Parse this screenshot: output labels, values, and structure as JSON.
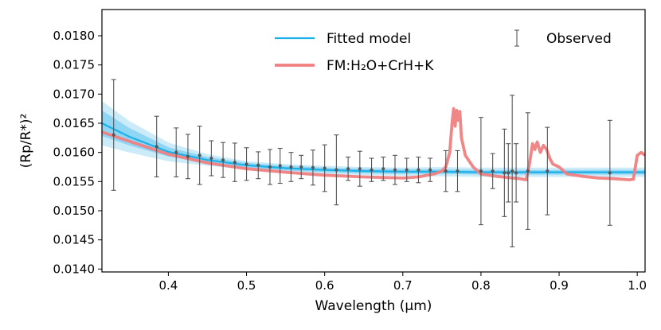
{
  "chart_data": {
    "type": "line",
    "xlabel": "Wavelength (μm)",
    "ylabel": "(Rp/R*)²",
    "xlim": [
      0.315,
      1.01
    ],
    "ylim": [
      0.01395,
      0.01845
    ],
    "x_ticks": [
      0.4,
      0.5,
      0.6,
      0.7,
      0.8,
      0.9,
      1.0
    ],
    "x_tick_labels": [
      "0.4",
      "0.5",
      "0.6",
      "0.7",
      "0.8",
      "0.9",
      "1.0"
    ],
    "y_ticks": [
      0.014,
      0.0145,
      0.015,
      0.0155,
      0.016,
      0.0165,
      0.017,
      0.0175,
      0.018
    ],
    "y_tick_labels": [
      "0.0140",
      "0.0145",
      "0.0150",
      "0.0155",
      "0.0160",
      "0.0165",
      "0.0170",
      "0.0175",
      "0.0180"
    ],
    "legend": {
      "placement": "top-right",
      "entries": [
        "Fitted model",
        "FM:H₂O+CrH+K",
        "Observed"
      ]
    },
    "series": [
      {
        "name": "Fitted model",
        "color": "#1ab0e8",
        "x": [
          0.315,
          0.35,
          0.4,
          0.45,
          0.5,
          0.55,
          0.6,
          0.65,
          0.7,
          0.75,
          0.8,
          0.85,
          0.9,
          0.95,
          1.01
        ],
        "y": [
          0.0165,
          0.01627,
          0.01601,
          0.01587,
          0.01578,
          0.01573,
          0.0157,
          0.01568,
          0.01567,
          0.01567,
          0.01566,
          0.01566,
          0.01566,
          0.01566,
          0.01566
        ],
        "bands": [
          {
            "lower": [
              0.01612,
              0.016,
              0.01585,
              0.01577,
              0.01571,
              0.01566,
              0.01563,
              0.01561,
              0.0156,
              0.01559,
              0.01558,
              0.01558,
              0.01558,
              0.01558,
              0.01558
            ],
            "upper": [
              0.01688,
              0.01654,
              0.01617,
              0.01597,
              0.01585,
              0.0158,
              0.01577,
              0.01575,
              0.01574,
              0.01575,
              0.01574,
              0.01574,
              0.01574,
              0.01574,
              0.01574
            ],
            "color": "#bfe6f8"
          },
          {
            "lower": [
              0.01628,
              0.01612,
              0.01593,
              0.01582,
              0.01574,
              0.01569,
              0.01566,
              0.01564,
              0.01563,
              0.01563,
              0.01562,
              0.01562,
              0.01562,
              0.01562,
              0.01562
            ],
            "upper": [
              0.01672,
              0.01642,
              0.01609,
              0.01592,
              0.01582,
              0.01577,
              0.01574,
              0.01572,
              0.01571,
              0.01571,
              0.0157,
              0.0157,
              0.0157,
              0.0157,
              0.0157
            ],
            "color": "#80d0f2"
          }
        ]
      },
      {
        "name": "FM:H₂O+CrH+K",
        "color": "#f08080",
        "x": [
          0.315,
          0.35,
          0.4,
          0.45,
          0.5,
          0.55,
          0.6,
          0.65,
          0.7,
          0.72,
          0.74,
          0.75,
          0.755,
          0.76,
          0.763,
          0.765,
          0.767,
          0.769,
          0.771,
          0.773,
          0.775,
          0.78,
          0.79,
          0.8,
          0.82,
          0.84,
          0.85,
          0.858,
          0.862,
          0.866,
          0.869,
          0.872,
          0.876,
          0.88,
          0.884,
          0.888,
          0.892,
          0.9,
          0.91,
          0.93,
          0.95,
          0.97,
          0.99,
          0.995,
          1.0,
          1.005,
          1.01
        ],
        "y": [
          0.01635,
          0.01619,
          0.01597,
          0.01582,
          0.01572,
          0.01566,
          0.01561,
          0.01558,
          0.01556,
          0.01558,
          0.01563,
          0.01568,
          0.01575,
          0.016,
          0.0165,
          0.01675,
          0.01645,
          0.01672,
          0.01655,
          0.0167,
          0.01625,
          0.01595,
          0.01575,
          0.01563,
          0.01559,
          0.01556,
          0.01555,
          0.01553,
          0.0158,
          0.01615,
          0.01605,
          0.01618,
          0.016,
          0.01612,
          0.01605,
          0.0159,
          0.0158,
          0.01575,
          0.01563,
          0.01559,
          0.01556,
          0.01555,
          0.01553,
          0.01554,
          0.01595,
          0.016,
          0.01595
        ]
      }
    ],
    "observed": {
      "name": "Observed",
      "x": [
        0.33,
        0.385,
        0.41,
        0.425,
        0.44,
        0.455,
        0.47,
        0.485,
        0.5,
        0.515,
        0.53,
        0.543,
        0.557,
        0.57,
        0.585,
        0.6,
        0.615,
        0.63,
        0.645,
        0.66,
        0.675,
        0.69,
        0.705,
        0.72,
        0.735,
        0.755,
        0.77,
        0.8,
        0.815,
        0.83,
        0.835,
        0.84,
        0.845,
        0.86,
        0.885,
        0.965
      ],
      "y": [
        0.0163,
        0.0161,
        0.016,
        0.01593,
        0.01595,
        0.0159,
        0.01587,
        0.01583,
        0.0158,
        0.01578,
        0.01575,
        0.01577,
        0.01575,
        0.01575,
        0.01574,
        0.01573,
        0.0157,
        0.01572,
        0.01572,
        0.0157,
        0.01572,
        0.0157,
        0.0157,
        0.0157,
        0.0157,
        0.01568,
        0.01568,
        0.01568,
        0.01568,
        0.01565,
        0.01565,
        0.01568,
        0.01565,
        0.01568,
        0.01568,
        0.01565
      ],
      "err": [
        0.00095,
        0.00052,
        0.00042,
        0.00038,
        0.0005,
        0.0003,
        0.0003,
        0.00033,
        0.00028,
        0.00023,
        0.0003,
        0.0003,
        0.00025,
        0.0002,
        0.0003,
        0.0004,
        0.0006,
        0.0002,
        0.0003,
        0.0002,
        0.0002,
        0.00025,
        0.0002,
        0.00022,
        0.0002,
        0.00035,
        0.00035,
        0.00092,
        0.0003,
        0.00075,
        0.0005,
        0.0013,
        0.0005,
        0.001,
        0.00075,
        0.0009
      ]
    }
  }
}
